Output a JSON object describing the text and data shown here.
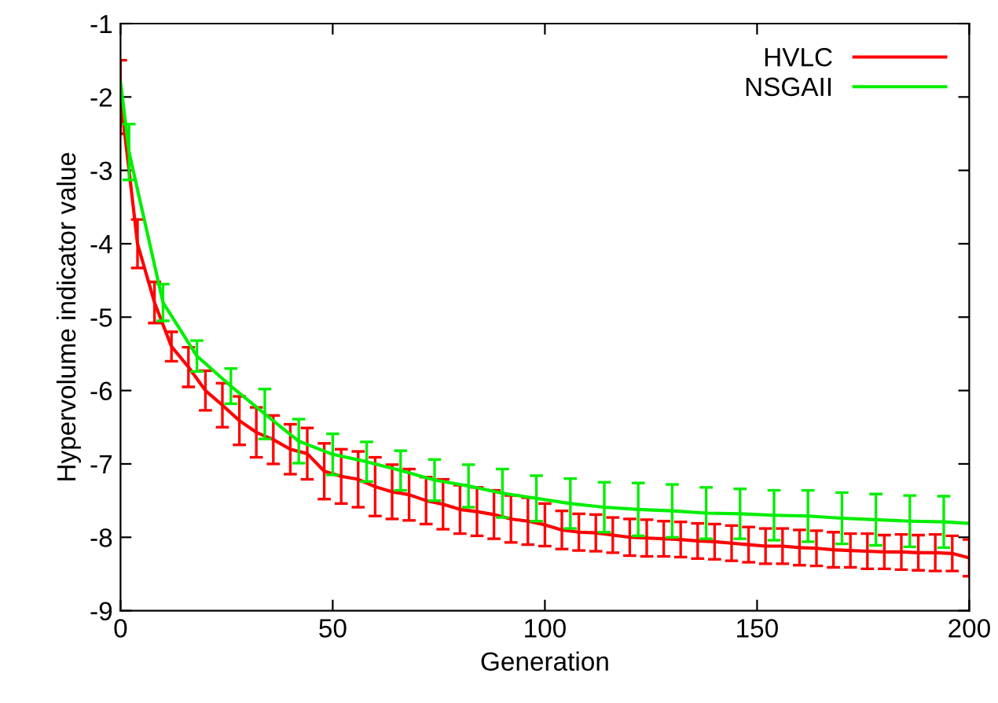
{
  "chart_data": {
    "type": "line",
    "xlabel": "Generation",
    "ylabel": "Hypervolume indicator value",
    "xlim": [
      0,
      200
    ],
    "ylim": [
      -9,
      -1
    ],
    "xticks": [
      0,
      50,
      100,
      150,
      200
    ],
    "yticks": [
      -9,
      -8,
      -7,
      -6,
      -5,
      -4,
      -3,
      -2,
      -1
    ],
    "grid": false,
    "legend": "top right",
    "marker": "none",
    "line_style": "solid",
    "series": [
      {
        "name": "HVLC",
        "color": "#ff0000",
        "x": [
          0,
          4,
          8,
          12,
          16,
          20,
          24,
          28,
          32,
          36,
          40,
          44,
          48,
          52,
          56,
          60,
          64,
          68,
          72,
          76,
          80,
          84,
          88,
          92,
          96,
          100,
          104,
          108,
          112,
          116,
          120,
          124,
          128,
          132,
          136,
          140,
          144,
          148,
          152,
          156,
          160,
          164,
          168,
          172,
          176,
          180,
          184,
          188,
          192,
          196,
          200
        ],
        "values": [
          -2.0,
          -4.0,
          -4.8,
          -5.4,
          -5.68,
          -6.0,
          -6.2,
          -6.41,
          -6.57,
          -6.67,
          -6.8,
          -6.86,
          -7.1,
          -7.17,
          -7.21,
          -7.31,
          -7.38,
          -7.42,
          -7.5,
          -7.55,
          -7.62,
          -7.65,
          -7.69,
          -7.75,
          -7.78,
          -7.83,
          -7.9,
          -7.93,
          -7.94,
          -7.97,
          -8.0,
          -8.01,
          -8.02,
          -8.03,
          -8.05,
          -8.06,
          -8.08,
          -8.1,
          -8.12,
          -8.12,
          -8.14,
          -8.15,
          -8.17,
          -8.18,
          -8.19,
          -8.2,
          -8.2,
          -8.21,
          -8.21,
          -8.22,
          -8.28
        ],
        "errors": [
          0.5,
          0.33,
          0.28,
          0.2,
          0.27,
          0.27,
          0.3,
          0.33,
          0.34,
          0.33,
          0.34,
          0.35,
          0.38,
          0.37,
          0.38,
          0.4,
          0.37,
          0.35,
          0.32,
          0.34,
          0.33,
          0.33,
          0.33,
          0.32,
          0.32,
          0.29,
          0.26,
          0.25,
          0.25,
          0.24,
          0.25,
          0.25,
          0.24,
          0.24,
          0.24,
          0.24,
          0.24,
          0.24,
          0.24,
          0.24,
          0.24,
          0.24,
          0.24,
          0.23,
          0.24,
          0.23,
          0.24,
          0.24,
          0.25,
          0.24,
          0.25
        ]
      },
      {
        "name": "NSGAII",
        "color": "#00ee00",
        "x": [
          0,
          2,
          10,
          18,
          26,
          34,
          42,
          50,
          58,
          66,
          74,
          82,
          90,
          98,
          106,
          114,
          122,
          130,
          138,
          146,
          154,
          162,
          170,
          178,
          186,
          194,
          200
        ],
        "values": [
          -1.8,
          -2.75,
          -4.8,
          -5.53,
          -5.94,
          -6.32,
          -6.69,
          -6.87,
          -6.97,
          -7.09,
          -7.22,
          -7.3,
          -7.4,
          -7.47,
          -7.54,
          -7.59,
          -7.62,
          -7.64,
          -7.67,
          -7.68,
          -7.7,
          -7.71,
          -7.74,
          -7.76,
          -7.78,
          -7.79,
          -7.81
        ],
        "errors": [
          null,
          0.38,
          0.25,
          0.21,
          0.24,
          0.34,
          0.3,
          0.28,
          0.27,
          0.27,
          0.28,
          0.29,
          0.33,
          0.31,
          0.34,
          0.34,
          0.36,
          0.36,
          0.35,
          0.34,
          0.34,
          0.35,
          0.35,
          0.35,
          0.35,
          0.35,
          null
        ]
      }
    ]
  }
}
